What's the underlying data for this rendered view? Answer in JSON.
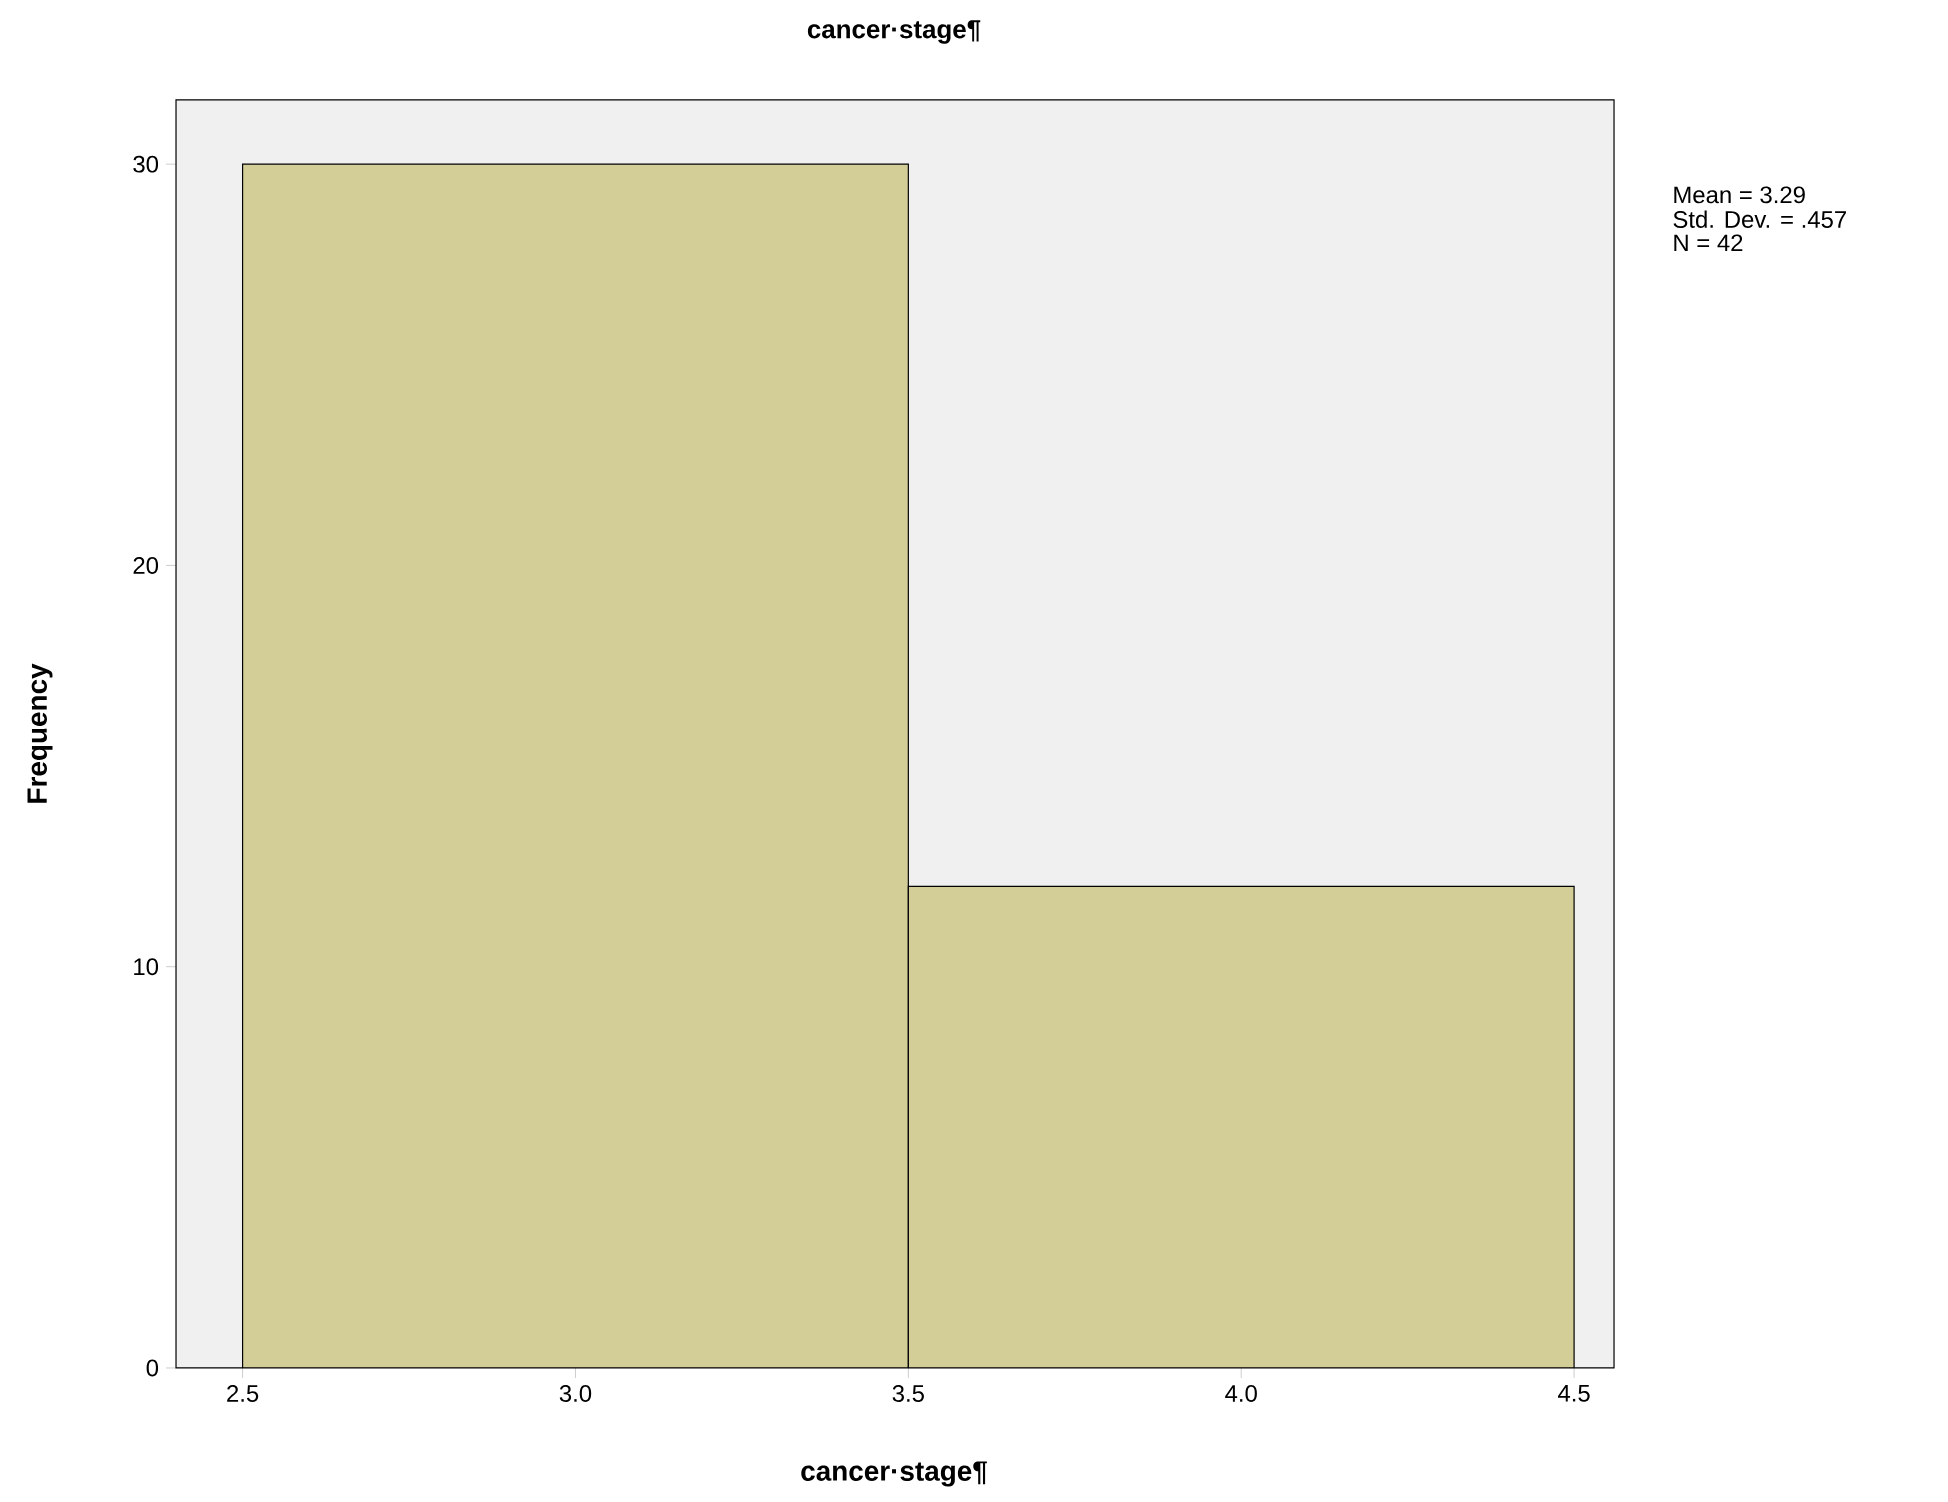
{
  "chart_data": {
    "type": "histogram",
    "title": "cancer·stage¶",
    "xlabel": "cancer·stage¶",
    "ylabel": "Frequency",
    "bins": [
      2.5,
      3.5,
      4.5
    ],
    "values": [
      30,
      12
    ],
    "color": "#d3cd98",
    "xlim": [
      2.4,
      4.56
    ],
    "ylim": [
      0,
      31.6
    ],
    "xticks": [
      2.5,
      {
        "value": 3,
        "label": "3.0"
      },
      3.5,
      {
        "value": 4,
        "label": "4.0"
      },
      4.5
    ],
    "yticks": [
      0,
      10,
      20,
      30
    ],
    "annotations": [
      "Mean = 3.29",
      "Std. Dev. = .457",
      "N = 42"
    ]
  }
}
